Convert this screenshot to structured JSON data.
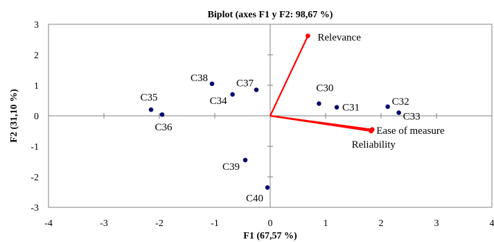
{
  "chart_data": {
    "type": "scatter",
    "title": "Biplot (axes F1 y F2: 98,67 %)",
    "xlabel": "F1 (67,57 %)",
    "ylabel": "F2 (31,10 %)",
    "xlim": [
      -4,
      4
    ],
    "ylim": [
      -3,
      3
    ],
    "xticks": [
      "-4",
      "-3",
      "-2",
      "-1",
      "0",
      "1",
      "2",
      "3",
      "4"
    ],
    "yticks": [
      "-3",
      "-2",
      "-1",
      "0",
      "1",
      "2",
      "3"
    ],
    "grid": false,
    "colors": {
      "points": "#0a0a6e",
      "vectors": "#ff0000"
    },
    "points": [
      {
        "label": "C30",
        "x": 0.88,
        "y": 0.4
      },
      {
        "label": "C31",
        "x": 1.2,
        "y": 0.28
      },
      {
        "label": "C32",
        "x": 2.12,
        "y": 0.3
      },
      {
        "label": "C33",
        "x": 2.32,
        "y": 0.1
      },
      {
        "label": "C34",
        "x": -0.68,
        "y": 0.7
      },
      {
        "label": "C35",
        "x": -2.15,
        "y": 0.2
      },
      {
        "label": "C36",
        "x": -1.95,
        "y": 0.04
      },
      {
        "label": "C37",
        "x": -0.25,
        "y": 0.85
      },
      {
        "label": "C38",
        "x": -1.05,
        "y": 1.05
      },
      {
        "label": "C39",
        "x": -0.45,
        "y": -1.45
      },
      {
        "label": "C40",
        "x": -0.05,
        "y": -2.35
      }
    ],
    "vectors": [
      {
        "label": "Relevance",
        "x": 0.68,
        "y": 2.62
      },
      {
        "label": "Ease of measure",
        "x": 1.84,
        "y": -0.45
      },
      {
        "label": "Reliability",
        "x": 1.82,
        "y": -0.5
      }
    ]
  }
}
